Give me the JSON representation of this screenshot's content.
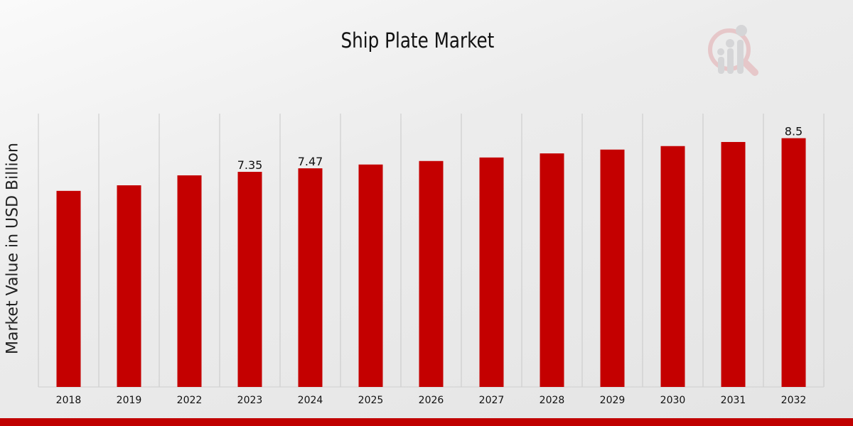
{
  "chart_data": {
    "type": "bar",
    "title": "Ship Plate Market",
    "xlabel": "",
    "ylabel": "Market Value in USD Billion",
    "categories": [
      "2018",
      "2019",
      "2022",
      "2023",
      "2024",
      "2025",
      "2026",
      "2027",
      "2028",
      "2029",
      "2030",
      "2031",
      "2032"
    ],
    "values": [
      6.7,
      6.89,
      7.23,
      7.35,
      7.47,
      7.6,
      7.72,
      7.84,
      7.98,
      8.11,
      8.23,
      8.37,
      8.5
    ],
    "data_labels": {
      "2023": "7.35",
      "2024": "7.47",
      "2032": "8.5"
    },
    "ylim": [
      0,
      9.34
    ],
    "grid": "vertical",
    "bar_color": "#c40000"
  }
}
